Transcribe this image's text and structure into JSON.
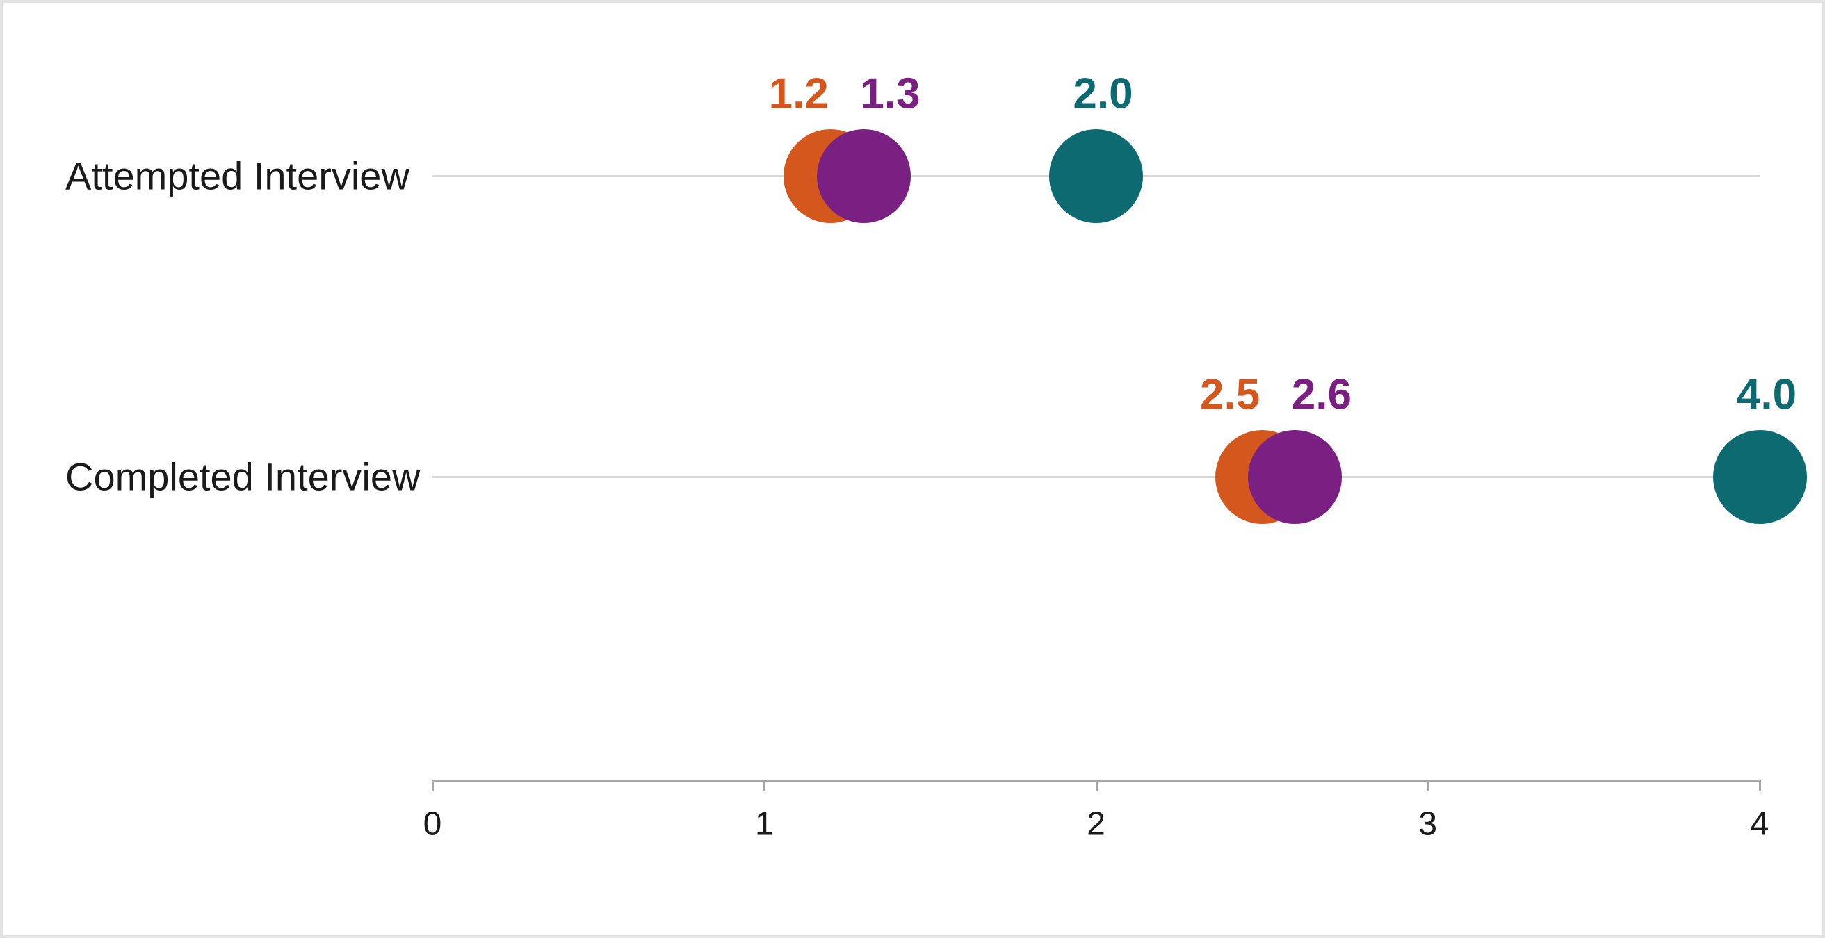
{
  "page": {
    "background_color": "#FFFFFF",
    "frame_border_color": "#E3E3E3"
  },
  "chart_data": {
    "type": "scatter",
    "subtype": "horizontal-dot-plot",
    "title": "",
    "xlabel": "",
    "ylabel": "",
    "categories": [
      "Attempted Interview",
      "Completed Interview"
    ],
    "series": [
      {
        "name": "orange-series",
        "color": "#D4571E",
        "values": [
          1.2,
          2.5
        ],
        "labels": [
          "1.2",
          "2.5"
        ]
      },
      {
        "name": "purple-series",
        "color": "#7A2082",
        "values": [
          1.3,
          2.6
        ],
        "labels": [
          "1.3",
          "2.6"
        ]
      },
      {
        "name": "teal-series",
        "color": "#0C6A70",
        "values": [
          2.0,
          4.0
        ],
        "labels": [
          "2.0",
          "4.0"
        ]
      }
    ],
    "xlim": [
      0,
      4
    ],
    "x_ticks": [
      "0",
      "1",
      "2",
      "3",
      "4"
    ],
    "x_tick_values": [
      0,
      1,
      2,
      3,
      4
    ],
    "legend": "none",
    "grid": "horizontal-category-lines",
    "gridline_color": "#DADADA",
    "axis_line_color": "#A6A6A6",
    "tick_label_color": "#1A1A1A",
    "category_label_color": "#1A1A1A"
  }
}
